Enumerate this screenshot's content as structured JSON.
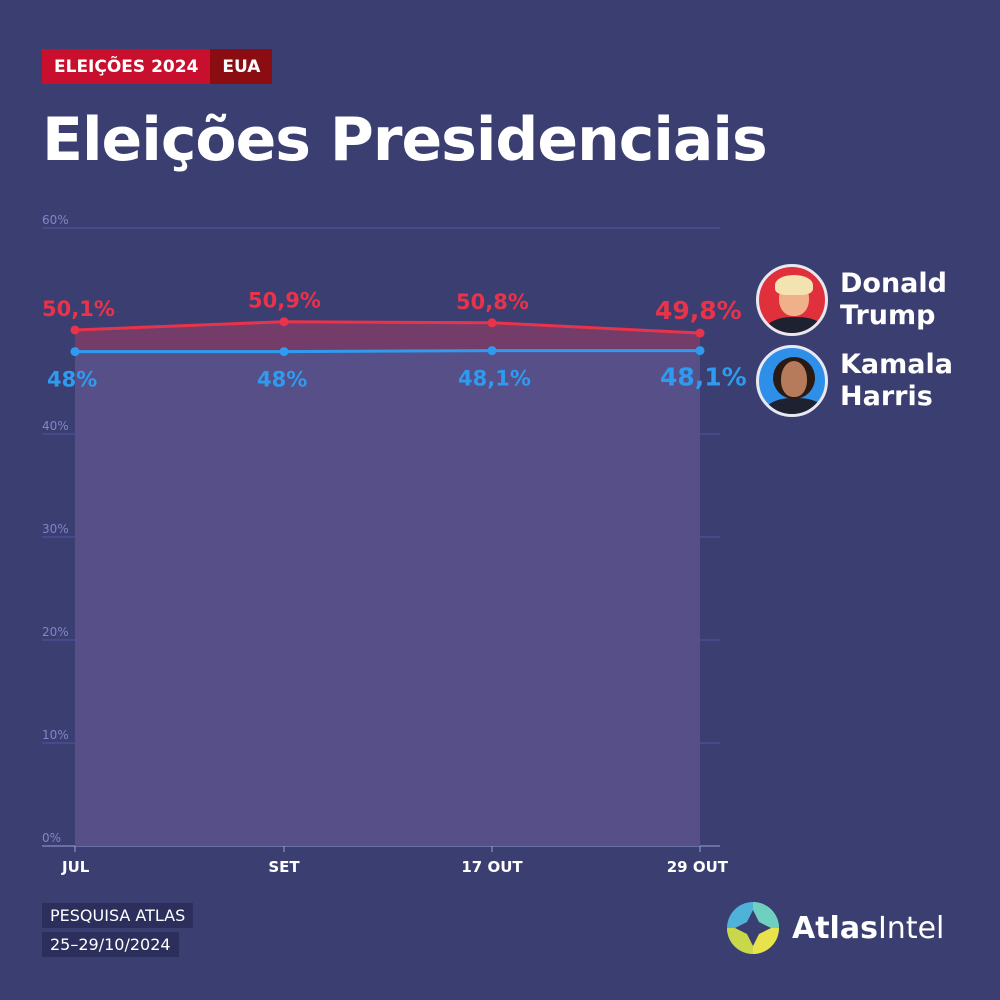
{
  "header": {
    "tag_primary": "ELEIÇÕES 2024",
    "tag_secondary": "EUA",
    "title": "Eleições Presidenciais"
  },
  "chart_data": {
    "type": "line",
    "categories": [
      "JUL",
      "SET",
      "17 OUT",
      "29 OUT"
    ],
    "series": [
      {
        "name": "Donald Trump",
        "values": [
          50.1,
          50.9,
          50.8,
          49.8
        ],
        "labels": [
          "50,1%",
          "50,9%",
          "50,8%",
          "49,8%"
        ],
        "color": "#e8334a"
      },
      {
        "name": "Kamala Harris",
        "values": [
          48.0,
          48.0,
          48.1,
          48.1
        ],
        "labels": [
          "48%",
          "48%",
          "48,1%",
          "48,1%"
        ],
        "color": "#2e9bf0"
      }
    ],
    "ylim": [
      0,
      60
    ],
    "yticks": [
      0,
      10,
      20,
      30,
      40,
      60
    ],
    "ytick_labels": [
      "0%",
      "10%",
      "20%",
      "30%",
      "40%",
      "60%"
    ],
    "grid": true
  },
  "legend": [
    {
      "first": "Donald",
      "last": "Trump"
    },
    {
      "first": "Kamala",
      "last": "Harris"
    }
  ],
  "footer": {
    "source_line1": "PESQUISA ATLAS",
    "source_line2": "25–29/10/2024",
    "brand_bold": "Atlas",
    "brand_regular": "Intel"
  },
  "colors": {
    "background": "#3b3e70",
    "trump": "#e8334a",
    "harris": "#2e9bf0",
    "tag_primary": "#c8102e",
    "tag_secondary": "#8b0d12"
  }
}
